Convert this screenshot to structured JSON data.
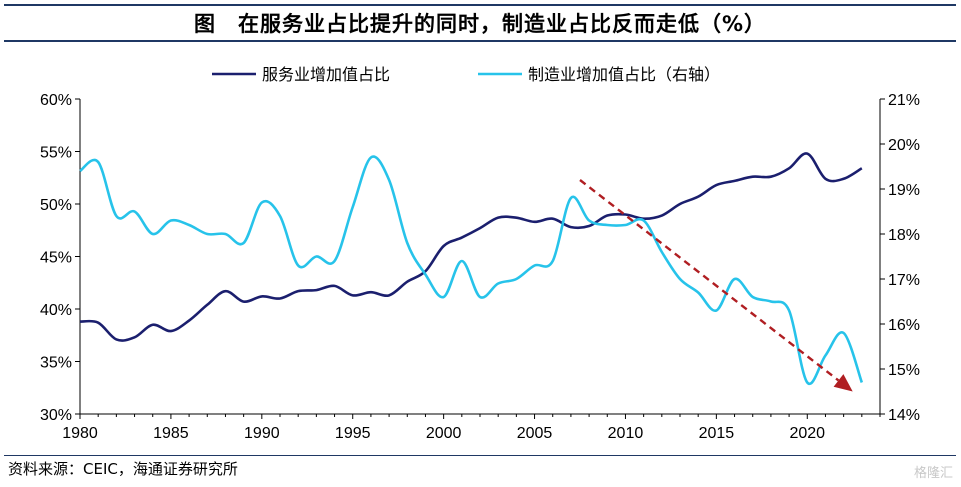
{
  "figure": {
    "label": "图",
    "title": "在服务业占比提升的同时，制造业占比反而走低（%）"
  },
  "source": "资料来源：CEIC，海通证券研究所",
  "watermark": "格隆汇",
  "colors": {
    "services": "#1b1f6e",
    "manufacturing": "#27c3ea",
    "trend_arrow": "#b01e22",
    "title_rule": "#1f3864"
  },
  "chart_data": {
    "type": "line",
    "title": "在服务业占比提升的同时，制造业占比反而走低（%）",
    "legend_position": "top",
    "x_axis": {
      "min": 1980,
      "max": 2024,
      "ticks": [
        1980,
        1985,
        1990,
        1995,
        2000,
        2005,
        2010,
        2015,
        2020
      ]
    },
    "y_left": {
      "min": 30,
      "max": 60,
      "ticks": [
        30,
        35,
        40,
        45,
        50,
        55,
        60
      ],
      "tick_labels": [
        "30%",
        "35%",
        "40%",
        "45%",
        "50%",
        "55%",
        "60%"
      ]
    },
    "y_right": {
      "min": 14,
      "max": 21,
      "ticks": [
        14,
        15,
        16,
        17,
        18,
        19,
        20,
        21
      ],
      "tick_labels": [
        "14%",
        "15%",
        "16%",
        "17%",
        "18%",
        "19%",
        "20%",
        "21%"
      ]
    },
    "series": [
      {
        "name": "服务业增加值占比",
        "axis": "left",
        "color": "#1b1f6e",
        "x": [
          1980,
          1981,
          1982,
          1983,
          1984,
          1985,
          1986,
          1987,
          1988,
          1989,
          1990,
          1991,
          1992,
          1993,
          1994,
          1995,
          1996,
          1997,
          1998,
          1999,
          2000,
          2001,
          2002,
          2003,
          2004,
          2005,
          2006,
          2007,
          2008,
          2009,
          2010,
          2011,
          2012,
          2013,
          2014,
          2015,
          2016,
          2017,
          2018,
          2019,
          2020,
          2021,
          2022,
          2023
        ],
        "values": [
          38.8,
          38.7,
          37.1,
          37.3,
          38.5,
          37.9,
          38.9,
          40.4,
          41.7,
          40.7,
          41.2,
          41.0,
          41.7,
          41.8,
          42.2,
          41.3,
          41.6,
          41.3,
          42.6,
          43.6,
          46.0,
          46.8,
          47.7,
          48.7,
          48.7,
          48.3,
          48.6,
          47.8,
          47.9,
          48.9,
          49.0,
          48.6,
          48.9,
          50.0,
          50.7,
          51.8,
          52.2,
          52.6,
          52.6,
          53.4,
          54.8,
          52.4,
          52.4,
          53.4
        ]
      },
      {
        "name": "制造业增加值占比（右轴）",
        "axis": "right",
        "color": "#27c3ea",
        "x": [
          1980,
          1981,
          1982,
          1983,
          1984,
          1985,
          1986,
          1987,
          1988,
          1989,
          1990,
          1991,
          1992,
          1993,
          1994,
          1995,
          1996,
          1997,
          1998,
          1999,
          2000,
          2001,
          2002,
          2003,
          2004,
          2005,
          2006,
          2007,
          2008,
          2009,
          2010,
          2011,
          2012,
          2013,
          2014,
          2015,
          2016,
          2017,
          2018,
          2019,
          2020,
          2021,
          2022,
          2023
        ],
        "values": [
          19.4,
          19.6,
          18.4,
          18.5,
          18.0,
          18.3,
          18.2,
          18.0,
          18.0,
          17.8,
          18.7,
          18.4,
          17.3,
          17.5,
          17.4,
          18.6,
          19.7,
          19.2,
          17.8,
          17.1,
          16.6,
          17.4,
          16.6,
          16.9,
          17.0,
          17.3,
          17.4,
          18.8,
          18.3,
          18.2,
          18.2,
          18.3,
          17.6,
          17.0,
          16.7,
          16.3,
          17.0,
          16.6,
          16.5,
          16.3,
          14.7,
          15.3,
          15.8,
          14.7
        ]
      }
    ],
    "annotations": [
      {
        "type": "trend-arrow",
        "from": {
          "x": 2007.5,
          "y_right": 19.2
        },
        "to": {
          "x": 2022.5,
          "y_right": 14.5
        },
        "style": "dashed",
        "color": "#b01e22"
      }
    ]
  }
}
